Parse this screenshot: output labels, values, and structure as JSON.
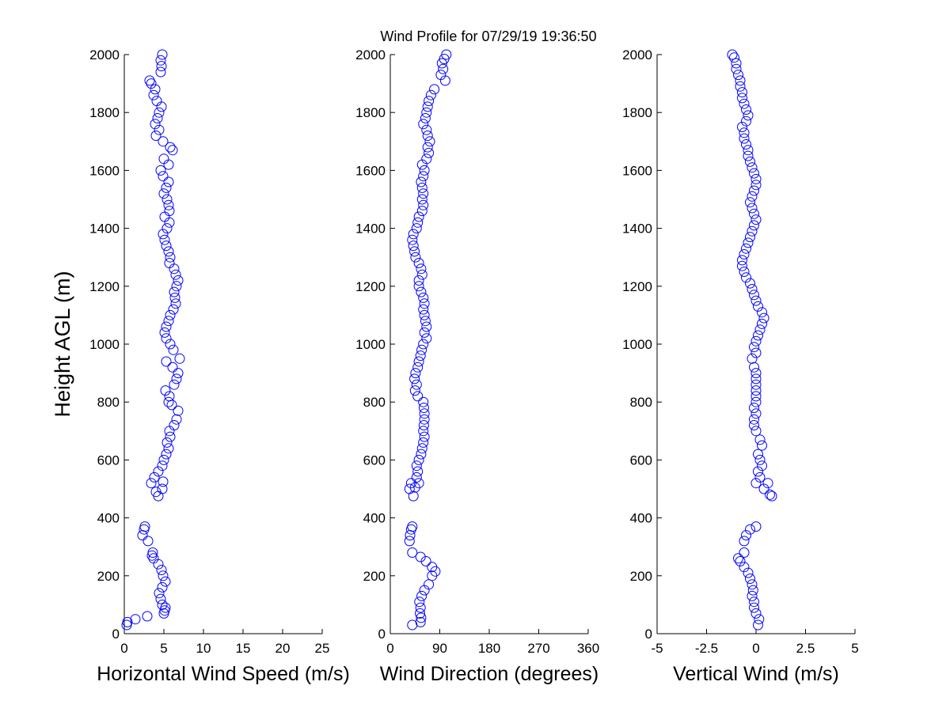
{
  "title": "Wind Profile for  07/29/19 19:36:50",
  "ylabel": "Height AGL (m)",
  "colors": {
    "marker": "#0000ff",
    "axis": "#000000",
    "background": "#ffffff"
  },
  "chart_data": [
    {
      "type": "scatter",
      "xlabel": "Horizontal Wind Speed (m/s)",
      "xlim": [
        0,
        25
      ],
      "ylim": [
        0,
        2000
      ],
      "xticks": [
        0,
        5,
        10,
        15,
        20,
        25
      ],
      "xtick_labels": [
        "0",
        "5",
        "10",
        "15",
        "20",
        "25"
      ],
      "yticks": [
        0,
        200,
        400,
        600,
        800,
        1000,
        1200,
        1400,
        1600,
        1800,
        2000
      ],
      "ytick_labels": [
        "0",
        "200",
        "400",
        "600",
        "800",
        "1000",
        "1200",
        "1400",
        "1600",
        "1800",
        "2000"
      ],
      "points": [
        [
          0.3,
          30
        ],
        [
          0.4,
          40
        ],
        [
          1.4,
          50
        ],
        [
          2.9,
          60
        ],
        [
          5.0,
          70
        ],
        [
          5.1,
          80
        ],
        [
          5.2,
          90
        ],
        [
          4.8,
          100
        ],
        [
          4.6,
          120
        ],
        [
          4.4,
          140
        ],
        [
          4.8,
          160
        ],
        [
          5.2,
          180
        ],
        [
          4.9,
          200
        ],
        [
          4.7,
          220
        ],
        [
          4.3,
          240
        ],
        [
          3.7,
          260
        ],
        [
          3.5,
          270
        ],
        [
          3.6,
          280
        ],
        [
          3.0,
          320
        ],
        [
          2.3,
          340
        ],
        [
          2.5,
          360
        ],
        [
          2.6,
          370
        ],
        [
          4.3,
          475
        ],
        [
          4.0,
          490
        ],
        [
          4.8,
          500
        ],
        [
          3.4,
          520
        ],
        [
          4.9,
          525
        ],
        [
          3.8,
          540
        ],
        [
          4.3,
          560
        ],
        [
          4.8,
          580
        ],
        [
          5.0,
          600
        ],
        [
          5.3,
          620
        ],
        [
          5.6,
          640
        ],
        [
          5.4,
          660
        ],
        [
          5.8,
          680
        ],
        [
          5.7,
          700
        ],
        [
          6.3,
          720
        ],
        [
          6.6,
          740
        ],
        [
          6.8,
          770
        ],
        [
          6.0,
          790
        ],
        [
          5.6,
          800
        ],
        [
          5.7,
          820
        ],
        [
          5.2,
          840
        ],
        [
          6.3,
          860
        ],
        [
          6.6,
          880
        ],
        [
          6.8,
          900
        ],
        [
          6.1,
          920
        ],
        [
          5.3,
          940
        ],
        [
          7.0,
          950
        ],
        [
          6.2,
          980
        ],
        [
          5.8,
          1000
        ],
        [
          5.3,
          1020
        ],
        [
          5.1,
          1040
        ],
        [
          5.3,
          1060
        ],
        [
          5.6,
          1080
        ],
        [
          5.8,
          1100
        ],
        [
          6.2,
          1120
        ],
        [
          6.5,
          1140
        ],
        [
          6.4,
          1160
        ],
        [
          6.3,
          1180
        ],
        [
          6.6,
          1200
        ],
        [
          6.8,
          1220
        ],
        [
          6.5,
          1240
        ],
        [
          6.3,
          1260
        ],
        [
          5.7,
          1280
        ],
        [
          5.8,
          1300
        ],
        [
          5.6,
          1320
        ],
        [
          5.3,
          1340
        ],
        [
          5.1,
          1360
        ],
        [
          4.9,
          1380
        ],
        [
          5.4,
          1400
        ],
        [
          5.7,
          1420
        ],
        [
          5.1,
          1440
        ],
        [
          5.7,
          1460
        ],
        [
          5.6,
          1480
        ],
        [
          5.4,
          1500
        ],
        [
          5.0,
          1520
        ],
        [
          5.3,
          1540
        ],
        [
          5.6,
          1560
        ],
        [
          4.9,
          1580
        ],
        [
          4.6,
          1600
        ],
        [
          5.6,
          1620
        ],
        [
          5.0,
          1640
        ],
        [
          6.1,
          1670
        ],
        [
          5.8,
          1680
        ],
        [
          4.9,
          1700
        ],
        [
          4.0,
          1720
        ],
        [
          4.4,
          1740
        ],
        [
          3.9,
          1760
        ],
        [
          4.2,
          1780
        ],
        [
          4.4,
          1800
        ],
        [
          4.7,
          1820
        ],
        [
          4.1,
          1840
        ],
        [
          3.7,
          1860
        ],
        [
          3.9,
          1880
        ],
        [
          3.4,
          1900
        ],
        [
          3.2,
          1910
        ],
        [
          4.6,
          1940
        ],
        [
          4.7,
          1960
        ],
        [
          4.6,
          1980
        ],
        [
          4.8,
          2000
        ]
      ]
    },
    {
      "type": "scatter",
      "xlabel": "Wind Direction (degrees)",
      "xlim": [
        0,
        360
      ],
      "ylim": [
        0,
        2000
      ],
      "xticks": [
        0,
        90,
        180,
        270,
        360
      ],
      "xtick_labels": [
        "0",
        "90",
        "180",
        "270",
        "360"
      ],
      "yticks": [
        0,
        200,
        400,
        600,
        800,
        1000,
        1200,
        1400,
        1600,
        1800,
        2000
      ],
      "ytick_labels": [
        "0",
        "200",
        "400",
        "600",
        "800",
        "1000",
        "1200",
        "1400",
        "1600",
        "1800",
        "2000"
      ],
      "points": [
        [
          40,
          30
        ],
        [
          55,
          40
        ],
        [
          56,
          55
        ],
        [
          54,
          70
        ],
        [
          55,
          90
        ],
        [
          53,
          110
        ],
        [
          57,
          130
        ],
        [
          62,
          150
        ],
        [
          70,
          170
        ],
        [
          76,
          200
        ],
        [
          82,
          215
        ],
        [
          76,
          230
        ],
        [
          65,
          250
        ],
        [
          55,
          265
        ],
        [
          40,
          280
        ],
        [
          35,
          320
        ],
        [
          36,
          340
        ],
        [
          38,
          360
        ],
        [
          40,
          370
        ],
        [
          42,
          475
        ],
        [
          35,
          500
        ],
        [
          45,
          505
        ],
        [
          38,
          520
        ],
        [
          52,
          520
        ],
        [
          48,
          540
        ],
        [
          50,
          560
        ],
        [
          48,
          580
        ],
        [
          52,
          600
        ],
        [
          56,
          620
        ],
        [
          58,
          640
        ],
        [
          60,
          660
        ],
        [
          62,
          680
        ],
        [
          60,
          700
        ],
        [
          61,
          720
        ],
        [
          62,
          740
        ],
        [
          62,
          760
        ],
        [
          61,
          780
        ],
        [
          60,
          800
        ],
        [
          50,
          820
        ],
        [
          45,
          840
        ],
        [
          48,
          860
        ],
        [
          44,
          880
        ],
        [
          46,
          900
        ],
        [
          50,
          920
        ],
        [
          52,
          940
        ],
        [
          55,
          960
        ],
        [
          57,
          980
        ],
        [
          60,
          1000
        ],
        [
          66,
          1020
        ],
        [
          62,
          1040
        ],
        [
          66,
          1060
        ],
        [
          64,
          1080
        ],
        [
          62,
          1100
        ],
        [
          60,
          1120
        ],
        [
          62,
          1140
        ],
        [
          60,
          1160
        ],
        [
          56,
          1180
        ],
        [
          52,
          1200
        ],
        [
          52,
          1220
        ],
        [
          58,
          1240
        ],
        [
          56,
          1260
        ],
        [
          52,
          1280
        ],
        [
          46,
          1300
        ],
        [
          44,
          1320
        ],
        [
          42,
          1340
        ],
        [
          40,
          1360
        ],
        [
          42,
          1380
        ],
        [
          48,
          1400
        ],
        [
          50,
          1420
        ],
        [
          52,
          1440
        ],
        [
          58,
          1460
        ],
        [
          60,
          1480
        ],
        [
          58,
          1500
        ],
        [
          60,
          1520
        ],
        [
          58,
          1540
        ],
        [
          56,
          1560
        ],
        [
          60,
          1580
        ],
        [
          62,
          1600
        ],
        [
          58,
          1620
        ],
        [
          66,
          1640
        ],
        [
          70,
          1660
        ],
        [
          68,
          1680
        ],
        [
          72,
          1700
        ],
        [
          68,
          1720
        ],
        [
          66,
          1740
        ],
        [
          60,
          1760
        ],
        [
          64,
          1780
        ],
        [
          66,
          1800
        ],
        [
          68,
          1820
        ],
        [
          70,
          1840
        ],
        [
          74,
          1860
        ],
        [
          80,
          1880
        ],
        [
          100,
          1910
        ],
        [
          92,
          1930
        ],
        [
          96,
          1950
        ],
        [
          94,
          1970
        ],
        [
          98,
          1985
        ],
        [
          102,
          2000
        ]
      ]
    },
    {
      "type": "scatter",
      "xlabel": "Vertical Wind (m/s)",
      "xlim": [
        -5,
        5
      ],
      "ylim": [
        0,
        2000
      ],
      "xticks": [
        -5,
        -2.5,
        0,
        2.5,
        5
      ],
      "xtick_labels": [
        "-5",
        "-2.5",
        "0",
        "2.5",
        "5"
      ],
      "yticks": [
        0,
        200,
        400,
        600,
        800,
        1000,
        1200,
        1400,
        1600,
        1800,
        2000
      ],
      "ytick_labels": [
        "0",
        "200",
        "400",
        "600",
        "800",
        "1000",
        "1200",
        "1400",
        "1600",
        "1800",
        "2000"
      ],
      "points": [
        [
          0.1,
          30
        ],
        [
          0.15,
          50
        ],
        [
          0.0,
          70
        ],
        [
          -0.1,
          90
        ],
        [
          -0.1,
          110
        ],
        [
          -0.2,
          130
        ],
        [
          -0.15,
          150
        ],
        [
          -0.2,
          170
        ],
        [
          -0.3,
          190
        ],
        [
          -0.4,
          210
        ],
        [
          -0.6,
          230
        ],
        [
          -0.8,
          250
        ],
        [
          -0.9,
          260
        ],
        [
          -0.6,
          280
        ],
        [
          -0.6,
          320
        ],
        [
          -0.5,
          340
        ],
        [
          -0.3,
          360
        ],
        [
          0.0,
          370
        ],
        [
          0.8,
          475
        ],
        [
          0.7,
          480
        ],
        [
          0.4,
          500
        ],
        [
          0.6,
          520
        ],
        [
          0.0,
          520
        ],
        [
          0.2,
          540
        ],
        [
          0.1,
          560
        ],
        [
          0.3,
          580
        ],
        [
          0.2,
          600
        ],
        [
          0.1,
          620
        ],
        [
          0.3,
          650
        ],
        [
          0.2,
          670
        ],
        [
          0.0,
          700
        ],
        [
          -0.1,
          720
        ],
        [
          -0.1,
          740
        ],
        [
          0.0,
          760
        ],
        [
          -0.1,
          780
        ],
        [
          0.0,
          800
        ],
        [
          0.0,
          820
        ],
        [
          0.0,
          840
        ],
        [
          0.0,
          860
        ],
        [
          0.0,
          880
        ],
        [
          0.0,
          900
        ],
        [
          -0.1,
          920
        ],
        [
          -0.2,
          950
        ],
        [
          0.0,
          970
        ],
        [
          -0.1,
          990
        ],
        [
          0.0,
          1010
        ],
        [
          0.1,
          1030
        ],
        [
          0.2,
          1050
        ],
        [
          0.3,
          1070
        ],
        [
          0.4,
          1090
        ],
        [
          0.3,
          1110
        ],
        [
          0.1,
          1130
        ],
        [
          0.0,
          1150
        ],
        [
          -0.1,
          1170
        ],
        [
          -0.2,
          1190
        ],
        [
          -0.3,
          1210
        ],
        [
          -0.5,
          1230
        ],
        [
          -0.6,
          1250
        ],
        [
          -0.7,
          1270
        ],
        [
          -0.7,
          1290
        ],
        [
          -0.6,
          1310
        ],
        [
          -0.5,
          1330
        ],
        [
          -0.4,
          1350
        ],
        [
          -0.3,
          1370
        ],
        [
          -0.2,
          1390
        ],
        [
          -0.1,
          1410
        ],
        [
          0.0,
          1430
        ],
        [
          -0.1,
          1450
        ],
        [
          -0.2,
          1470
        ],
        [
          -0.3,
          1490
        ],
        [
          -0.2,
          1510
        ],
        [
          -0.1,
          1530
        ],
        [
          0.0,
          1550
        ],
        [
          0.0,
          1570
        ],
        [
          -0.1,
          1590
        ],
        [
          -0.2,
          1610
        ],
        [
          -0.3,
          1630
        ],
        [
          -0.4,
          1650
        ],
        [
          -0.4,
          1670
        ],
        [
          -0.5,
          1690
        ],
        [
          -0.6,
          1710
        ],
        [
          -0.6,
          1730
        ],
        [
          -0.7,
          1750
        ],
        [
          -0.5,
          1770
        ],
        [
          -0.4,
          1790
        ],
        [
          -0.5,
          1810
        ],
        [
          -0.6,
          1830
        ],
        [
          -0.7,
          1850
        ],
        [
          -0.7,
          1870
        ],
        [
          -0.8,
          1890
        ],
        [
          -0.8,
          1910
        ],
        [
          -0.9,
          1930
        ],
        [
          -1.0,
          1950
        ],
        [
          -1.0,
          1970
        ],
        [
          -1.1,
          1990
        ],
        [
          -1.2,
          2000
        ]
      ]
    }
  ]
}
